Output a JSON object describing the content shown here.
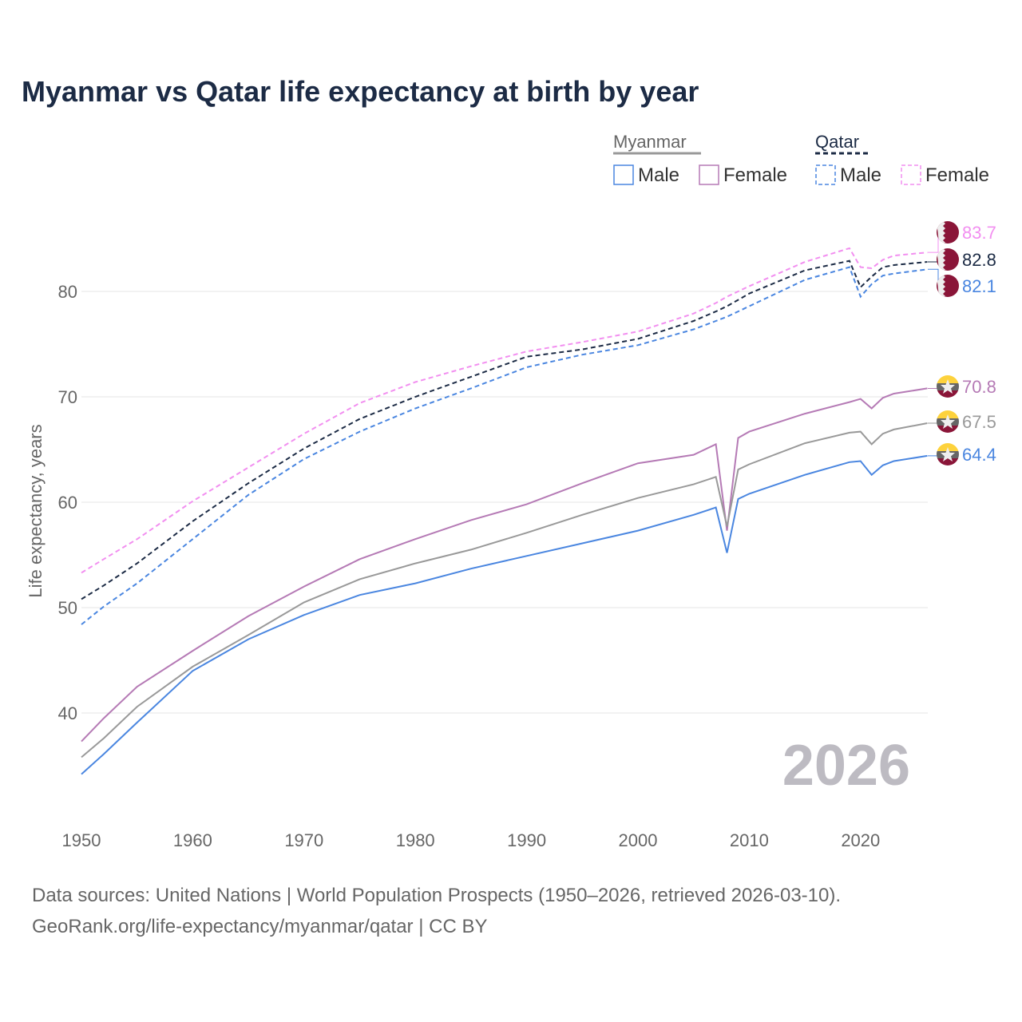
{
  "chart_data": {
    "type": "line",
    "title": "Myanmar vs Qatar life expectancy at birth by year",
    "xlabel": "",
    "ylabel": "Life expectancy, years",
    "xlim": [
      1950,
      2026
    ],
    "ylim": [
      33,
      87
    ],
    "x_ticks": [
      "1950",
      "1960",
      "1970",
      "1980",
      "1990",
      "2000",
      "2010",
      "2020"
    ],
    "y_ticks": [
      "40",
      "50",
      "60",
      "70",
      "80"
    ],
    "grid": true,
    "year_watermark": "2026",
    "legend": {
      "placement": "top-right",
      "groups": [
        {
          "name": "Myanmar",
          "items": [
            "Male",
            "Female"
          ]
        },
        {
          "name": "Qatar",
          "items": [
            "Male",
            "Female"
          ]
        }
      ]
    },
    "x": [
      1950,
      1952,
      1955,
      1960,
      1965,
      1970,
      1975,
      1980,
      1985,
      1990,
      1995,
      2000,
      2005,
      2007,
      2008,
      2009,
      2010,
      2015,
      2019,
      2020,
      2021,
      2022,
      2023,
      2026
    ],
    "series": [
      {
        "name": "Qatar Female",
        "country": "Qatar",
        "color": "#f28ff0",
        "dashed": true,
        "end_label": "83.7",
        "values": [
          53.3,
          54.6,
          56.5,
          60.1,
          63.3,
          66.5,
          69.4,
          71.4,
          72.9,
          74.3,
          75.2,
          76.2,
          77.9,
          78.9,
          79.5,
          80.0,
          80.5,
          82.8,
          84.1,
          82.3,
          82.2,
          83.0,
          83.4,
          83.7
        ]
      },
      {
        "name": "Qatar",
        "country": "Qatar",
        "color": "#1c2b45",
        "dashed": true,
        "end_label": "82.8",
        "values": [
          50.8,
          52.1,
          54.2,
          58.2,
          61.8,
          65.1,
          67.9,
          70.0,
          71.9,
          73.8,
          74.5,
          75.5,
          77.2,
          78.1,
          78.6,
          79.2,
          79.8,
          82.0,
          82.9,
          80.4,
          81.4,
          82.3,
          82.5,
          82.8
        ]
      },
      {
        "name": "Qatar Male",
        "country": "Qatar",
        "color": "#4a86e0",
        "dashed": true,
        "end_label": "82.1",
        "values": [
          48.4,
          50.1,
          52.3,
          56.5,
          60.7,
          64.1,
          66.7,
          68.9,
          70.8,
          72.8,
          74.0,
          74.9,
          76.4,
          77.2,
          77.6,
          78.1,
          78.6,
          81.1,
          82.3,
          79.5,
          80.7,
          81.5,
          81.7,
          82.1
        ]
      },
      {
        "name": "Myanmar Female",
        "country": "Myanmar",
        "color": "#b57ab5",
        "dashed": false,
        "end_label": "70.8",
        "values": [
          37.3,
          39.5,
          42.5,
          45.9,
          49.2,
          52.0,
          54.6,
          56.5,
          58.3,
          59.8,
          61.8,
          63.7,
          64.5,
          65.5,
          57.3,
          66.1,
          66.7,
          68.4,
          69.5,
          69.8,
          68.9,
          69.9,
          70.3,
          70.8
        ]
      },
      {
        "name": "Myanmar",
        "country": "Myanmar",
        "color": "#999999",
        "dashed": false,
        "end_label": "67.5",
        "values": [
          35.8,
          37.6,
          40.6,
          44.4,
          47.4,
          50.5,
          52.7,
          54.2,
          55.5,
          57.1,
          58.8,
          60.4,
          61.7,
          62.4,
          57.7,
          63.1,
          63.6,
          65.6,
          66.6,
          66.7,
          65.5,
          66.5,
          66.9,
          67.5
        ]
      },
      {
        "name": "Myanmar Male",
        "country": "Myanmar",
        "color": "#4a86e0",
        "dashed": false,
        "end_label": "64.4",
        "values": [
          34.2,
          36.1,
          39.1,
          44.0,
          47.0,
          49.3,
          51.2,
          52.3,
          53.7,
          54.9,
          56.1,
          57.3,
          58.8,
          59.5,
          55.2,
          60.3,
          60.8,
          62.6,
          63.8,
          63.9,
          62.6,
          63.5,
          63.9,
          64.4
        ]
      }
    ]
  },
  "footer": {
    "line1": "Data sources: United Nations | World Population Prospects (1950–2026, retrieved 2026-03-10).",
    "line2": "GeoRank.org/life-expectancy/myanmar/qatar | CC BY"
  }
}
